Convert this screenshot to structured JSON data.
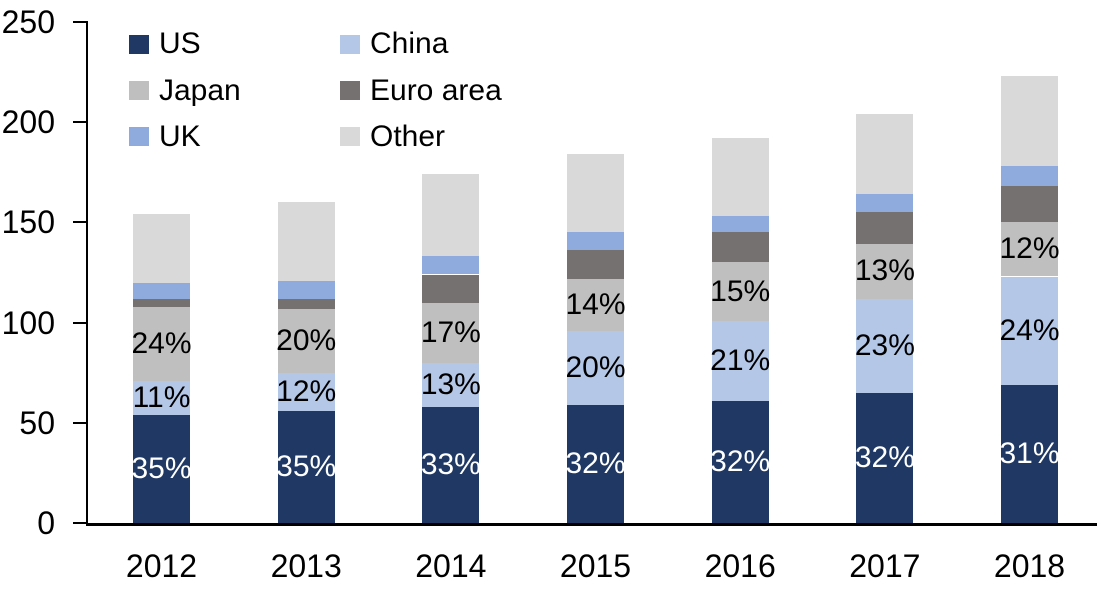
{
  "background": "#FFFFFF",
  "axis_color": "#000000",
  "chart_data": {
    "type": "bar",
    "stacked": true,
    "title": "",
    "xlabel": "",
    "ylabel": "",
    "categories": [
      "2012",
      "2013",
      "2014",
      "2015",
      "2016",
      "2017",
      "2018"
    ],
    "series": [
      {
        "name": "US",
        "color": "#1F3864",
        "label_color": "#FFFFFF",
        "values": [
          54,
          56,
          58,
          59,
          61,
          65,
          69
        ],
        "labels": [
          "35%",
          "35%",
          "33%",
          "32%",
          "32%",
          "32%",
          "31%"
        ]
      },
      {
        "name": "China",
        "color": "#B4C7E7",
        "label_color": "#000000",
        "values": [
          17,
          19,
          22,
          37,
          40,
          47,
          54
        ],
        "labels": [
          "11%",
          "12%",
          "13%",
          "20%",
          "21%",
          "23%",
          "24%"
        ]
      },
      {
        "name": "Japan",
        "color": "#BFBFBF",
        "label_color": "#000000",
        "values": [
          37,
          32,
          30,
          26,
          29,
          27,
          27
        ],
        "labels": [
          "24%",
          "20%",
          "17%",
          "14%",
          "15%",
          "13%",
          "12%"
        ]
      },
      {
        "name": "Euro area",
        "color": "#757171",
        "label_color": null,
        "values": [
          4,
          5,
          14,
          14,
          15,
          16,
          18
        ],
        "labels": null
      },
      {
        "name": "UK",
        "color": "#8FAADC",
        "label_color": null,
        "values": [
          8,
          9,
          9,
          9,
          8,
          9,
          10
        ],
        "labels": null
      },
      {
        "name": "Other",
        "color": "#D9D9D9",
        "label_color": null,
        "values": [
          34,
          39,
          41,
          39,
          39,
          40,
          45
        ],
        "labels": null
      }
    ],
    "totals": [
      154,
      160,
      174,
      184,
      192,
      204,
      223
    ],
    "ylim": [
      0,
      250
    ],
    "yticks": [
      "0",
      "50",
      "100",
      "150",
      "200",
      "250"
    ],
    "grid": false,
    "legend_position": "top-left",
    "legend_columns": 2,
    "legend_order": [
      "US",
      "China",
      "Japan",
      "Euro area",
      "UK",
      "Other"
    ]
  }
}
